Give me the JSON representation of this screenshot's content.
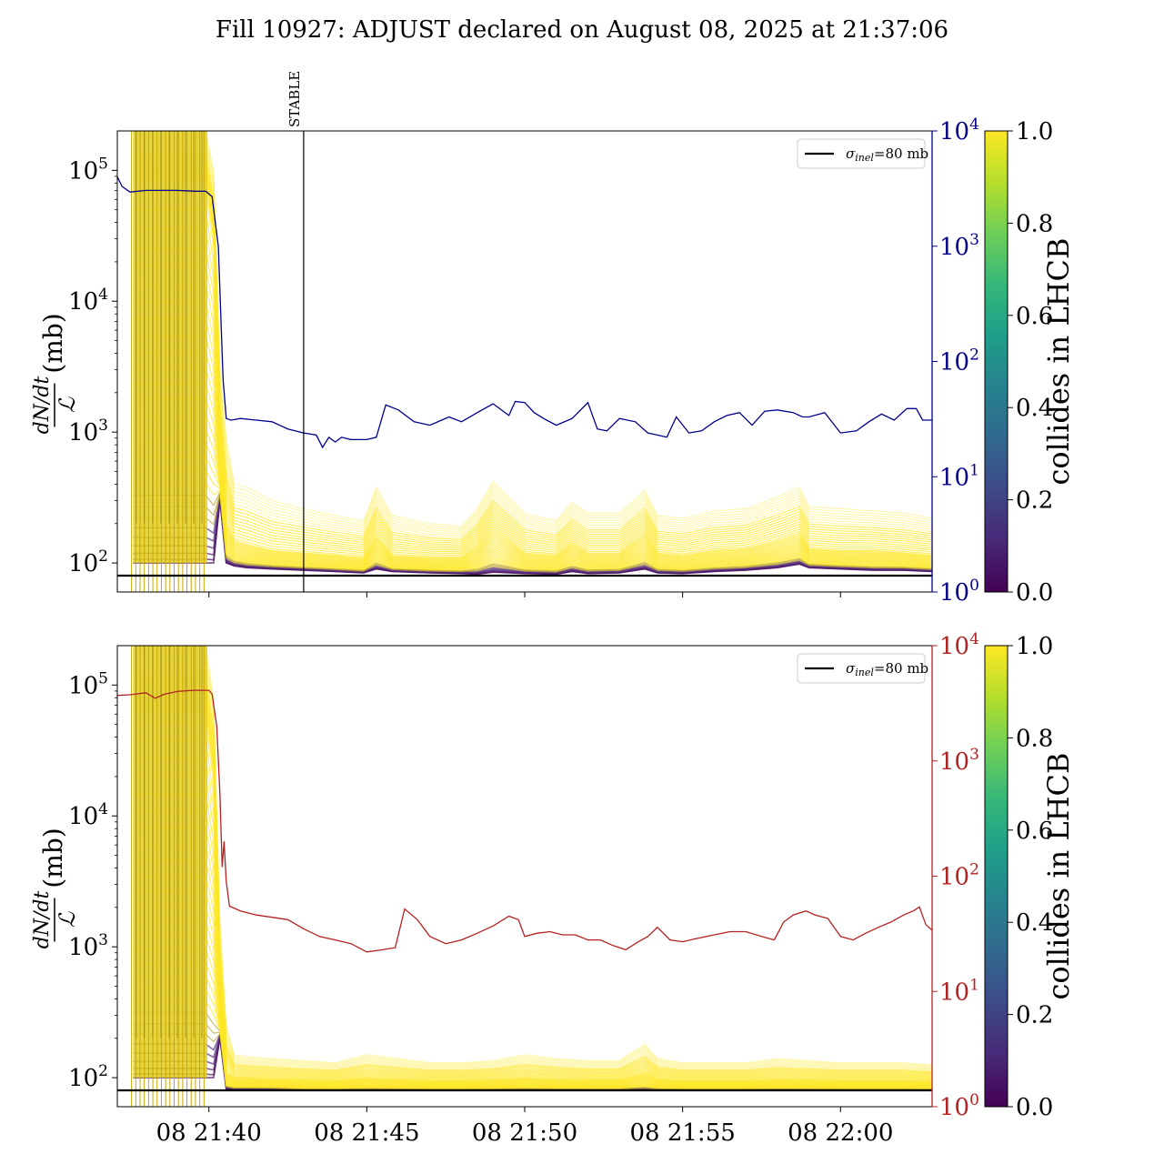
{
  "title": "Fill 10927: ADJUST declared on August 08, 2025 at 21:37:06",
  "chart_data": [
    {
      "type": "line",
      "panel": "top",
      "ylabel_fraction_num": "dN/dt",
      "ylabel_fraction_den": "ℒ",
      "ylabel_unit": "(mb)",
      "yscale": "log",
      "ylim": [
        60,
        200000
      ],
      "yticks": [
        {
          "v": 100,
          "b": "10",
          "e": "2"
        },
        {
          "v": 1000,
          "b": "10",
          "e": "3"
        },
        {
          "v": 10000,
          "b": "10",
          "e": "4"
        },
        {
          "v": 100000,
          "b": "10",
          "e": "5"
        }
      ],
      "right_axis": {
        "color": "#00008b",
        "yscale": "log",
        "ylim": [
          1,
          10000
        ],
        "yticks": [
          {
            "v": 1,
            "b": "10",
            "e": "0"
          },
          {
            "v": 10,
            "b": "10",
            "e": "1"
          },
          {
            "v": 100,
            "b": "10",
            "e": "2"
          },
          {
            "v": 1000,
            "b": "10",
            "e": "3"
          },
          {
            "v": 10000,
            "b": "10",
            "e": "4"
          }
        ]
      },
      "xlim_minutes": [
        37.1,
        62.9
      ],
      "xticks": [
        {
          "v": 40,
          "label": ""
        },
        {
          "v": 45,
          "label": ""
        },
        {
          "v": 50,
          "label": ""
        },
        {
          "v": 55,
          "label": ""
        },
        {
          "v": 60,
          "label": ""
        }
      ],
      "vline": {
        "x": 43.0,
        "label": "STABLE"
      },
      "hline": {
        "y": 80,
        "color": "#000000"
      },
      "legend": {
        "position": "top-right",
        "label_main": "σ",
        "label_sub": "inel",
        "label_rest": "=80 mb"
      },
      "right_series": {
        "name": "",
        "color": "#00008b",
        "x": [
          37.1,
          37.25,
          37.5,
          38,
          39,
          39.6,
          39.9,
          40.1,
          40.3,
          40.45,
          40.55,
          40.7,
          41.0,
          41.5,
          42.0,
          42.5,
          43.0,
          43.4,
          43.6,
          43.8,
          44.0,
          44.2,
          44.5,
          45.0,
          45.3,
          45.6,
          46.0,
          46.5,
          47.0,
          47.6,
          48.0,
          48.5,
          49.0,
          49.5,
          49.7,
          50.0,
          50.3,
          50.6,
          51.0,
          51.5,
          52.0,
          52.3,
          52.6,
          53.0,
          53.5,
          53.9,
          54.2,
          54.5,
          54.8,
          55.2,
          55.6,
          56.0,
          56.4,
          56.8,
          57.2,
          57.6,
          58.0,
          58.5,
          58.8,
          59.0,
          59.5,
          60.0,
          60.5,
          60.9,
          61.3,
          61.7,
          62.1,
          62.4,
          62.6,
          62.9
        ],
        "y": [
          4000,
          3300,
          2950,
          3050,
          3050,
          3000,
          3000,
          2700,
          1000,
          70,
          32,
          31,
          32,
          31,
          30,
          26,
          24,
          23,
          18,
          22,
          20,
          22,
          21,
          21,
          22,
          42,
          38,
          30,
          28,
          33,
          30,
          36,
          43,
          34,
          45,
          44,
          36,
          32,
          28,
          32,
          44,
          26,
          25,
          32,
          30,
          24,
          23,
          22,
          33,
          24,
          25,
          30,
          34,
          36,
          28,
          37,
          38,
          36,
          33,
          33,
          36,
          24,
          25,
          30,
          35,
          31,
          39,
          39,
          31,
          31
        ]
      },
      "band": {
        "name": "",
        "x": [
          37.6,
          39.9,
          40.15,
          40.35,
          40.55,
          40.8,
          41.2,
          42.0,
          43.0,
          44.0,
          44.9,
          45.3,
          45.8,
          47.0,
          48.0,
          48.5,
          49.0,
          50.0,
          51.0,
          51.5,
          52.0,
          53.0,
          53.8,
          54.2,
          55.0,
          56.0,
          57.0,
          58.0,
          58.7,
          59.0,
          60.0,
          61.0,
          62.0,
          62.9
        ],
        "upper": [
          200000,
          200000,
          100000,
          3000,
          900,
          400,
          380,
          300,
          260,
          230,
          210,
          380,
          230,
          200,
          190,
          260,
          420,
          240,
          210,
          290,
          240,
          240,
          360,
          230,
          220,
          250,
          260,
          320,
          380,
          270,
          260,
          250,
          240,
          220
        ],
        "middle": [
          80000,
          80000,
          30000,
          700,
          200,
          150,
          140,
          125,
          120,
          115,
          110,
          160,
          115,
          110,
          110,
          135,
          190,
          120,
          115,
          145,
          120,
          120,
          170,
          120,
          115,
          125,
          130,
          150,
          170,
          130,
          125,
          125,
          120,
          115
        ],
        "lower": [
          100,
          100,
          100,
          300,
          100,
          95,
          92,
          90,
          88,
          86,
          84,
          90,
          86,
          84,
          83,
          82,
          85,
          83,
          82,
          86,
          83,
          84,
          90,
          84,
          83,
          86,
          88,
          92,
          98,
          92,
          90,
          88,
          88,
          86
        ]
      }
    },
    {
      "type": "line",
      "panel": "bottom",
      "ylabel_fraction_num": "dN/dt",
      "ylabel_fraction_den": "ℒ",
      "ylabel_unit": "(mb)",
      "yscale": "log",
      "ylim": [
        60,
        200000
      ],
      "yticks": [
        {
          "v": 100,
          "b": "10",
          "e": "2"
        },
        {
          "v": 1000,
          "b": "10",
          "e": "3"
        },
        {
          "v": 10000,
          "b": "10",
          "e": "4"
        },
        {
          "v": 100000,
          "b": "10",
          "e": "5"
        }
      ],
      "right_axis": {
        "color": "#b22222",
        "yscale": "log",
        "ylim": [
          1,
          10000
        ],
        "yticks": [
          {
            "v": 1,
            "b": "10",
            "e": "0"
          },
          {
            "v": 10,
            "b": "10",
            "e": "1"
          },
          {
            "v": 100,
            "b": "10",
            "e": "2"
          },
          {
            "v": 1000,
            "b": "10",
            "e": "3"
          },
          {
            "v": 10000,
            "b": "10",
            "e": "4"
          }
        ]
      },
      "xlim_minutes": [
        37.1,
        62.9
      ],
      "xticks": [
        {
          "v": 40,
          "label": "08 21:40"
        },
        {
          "v": 45,
          "label": "08 21:45"
        },
        {
          "v": 50,
          "label": "08 21:50"
        },
        {
          "v": 55,
          "label": "08 21:55"
        },
        {
          "v": 60,
          "label": "08 22:00"
        }
      ],
      "hline": {
        "y": 80,
        "color": "#000000"
      },
      "legend": {
        "position": "top-right",
        "label_main": "σ",
        "label_sub": "inel",
        "label_rest": "=80 mb"
      },
      "right_series": {
        "name": "",
        "color": "#b22222",
        "x": [
          37.1,
          37.5,
          38.0,
          38.3,
          38.6,
          39.0,
          39.5,
          40.0,
          40.1,
          40.25,
          40.35,
          40.42,
          40.48,
          40.55,
          40.65,
          41.0,
          41.5,
          42.0,
          42.5,
          43.0,
          43.5,
          44.0,
          44.5,
          45.0,
          45.5,
          45.9,
          46.2,
          46.6,
          47.0,
          47.5,
          48.0,
          48.5,
          49.0,
          49.5,
          49.8,
          50.0,
          50.4,
          50.8,
          51.2,
          51.6,
          52.0,
          52.4,
          52.8,
          53.2,
          53.6,
          53.9,
          54.2,
          54.6,
          55.0,
          55.5,
          56.0,
          56.5,
          57.0,
          57.5,
          57.9,
          58.2,
          58.5,
          58.9,
          59.2,
          59.6,
          60.0,
          60.4,
          60.8,
          61.2,
          61.6,
          62.0,
          62.3,
          62.5,
          62.7,
          62.9
        ],
        "y": [
          3700,
          3750,
          3900,
          3500,
          3800,
          4000,
          4100,
          4100,
          3800,
          2000,
          500,
          120,
          200,
          90,
          55,
          50,
          46,
          44,
          42,
          35,
          30,
          28,
          26,
          22,
          23,
          24,
          52,
          42,
          30,
          26,
          28,
          32,
          37,
          45,
          42,
          30,
          32,
          33,
          31,
          31,
          28,
          28,
          25,
          23,
          27,
          30,
          36,
          28,
          27,
          29,
          31,
          33,
          33,
          30,
          28,
          40,
          46,
          50,
          46,
          43,
          30,
          28,
          32,
          36,
          40,
          46,
          50,
          54,
          38,
          34
        ]
      },
      "band": {
        "name": "",
        "x": [
          37.6,
          39.9,
          40.15,
          40.35,
          40.55,
          40.8,
          41.2,
          42.0,
          43.0,
          44.0,
          45.0,
          46.0,
          47.0,
          48.0,
          49.0,
          50.0,
          51.0,
          52.0,
          53.0,
          53.8,
          54.2,
          55.0,
          56.0,
          57.0,
          58.0,
          59.0,
          60.0,
          61.0,
          62.0,
          62.9
        ],
        "upper": [
          200000,
          200000,
          80000,
          1500,
          250,
          150,
          145,
          140,
          135,
          130,
          150,
          140,
          130,
          130,
          135,
          150,
          140,
          135,
          135,
          180,
          140,
          130,
          130,
          130,
          140,
          135,
          130,
          130,
          130,
          125
        ],
        "middle": [
          60000,
          60000,
          20000,
          400,
          110,
          100,
          100,
          98,
          96,
          95,
          100,
          97,
          95,
          95,
          96,
          100,
          97,
          96,
          96,
          110,
          98,
          95,
          95,
          95,
          97,
          96,
          95,
          95,
          95,
          94
        ],
        "lower": [
          100,
          100,
          100,
          200,
          82,
          81,
          81,
          81,
          80,
          80,
          80,
          80,
          80,
          80,
          80,
          80,
          80,
          80,
          80,
          80,
          80,
          80,
          80,
          80,
          80,
          80,
          80,
          80,
          80,
          80
        ]
      }
    }
  ],
  "colorbars": [
    {
      "label": "collides in LHCB",
      "ticks": [
        "0.0",
        "0.2",
        "0.4",
        "0.6",
        "0.8",
        "1.0"
      ],
      "colormap": [
        "#440154",
        "#482878",
        "#3e4989",
        "#31688e",
        "#26828e",
        "#1f9e89",
        "#35b779",
        "#6ece58",
        "#b5de2b",
        "#fde725"
      ]
    },
    {
      "label": "collides in LHCB",
      "ticks": [
        "0.0",
        "0.2",
        "0.4",
        "0.6",
        "0.8",
        "1.0"
      ],
      "colormap": [
        "#440154",
        "#482878",
        "#3e4989",
        "#31688e",
        "#26828e",
        "#1f9e89",
        "#35b779",
        "#6ece58",
        "#b5de2b",
        "#fde725"
      ]
    }
  ]
}
